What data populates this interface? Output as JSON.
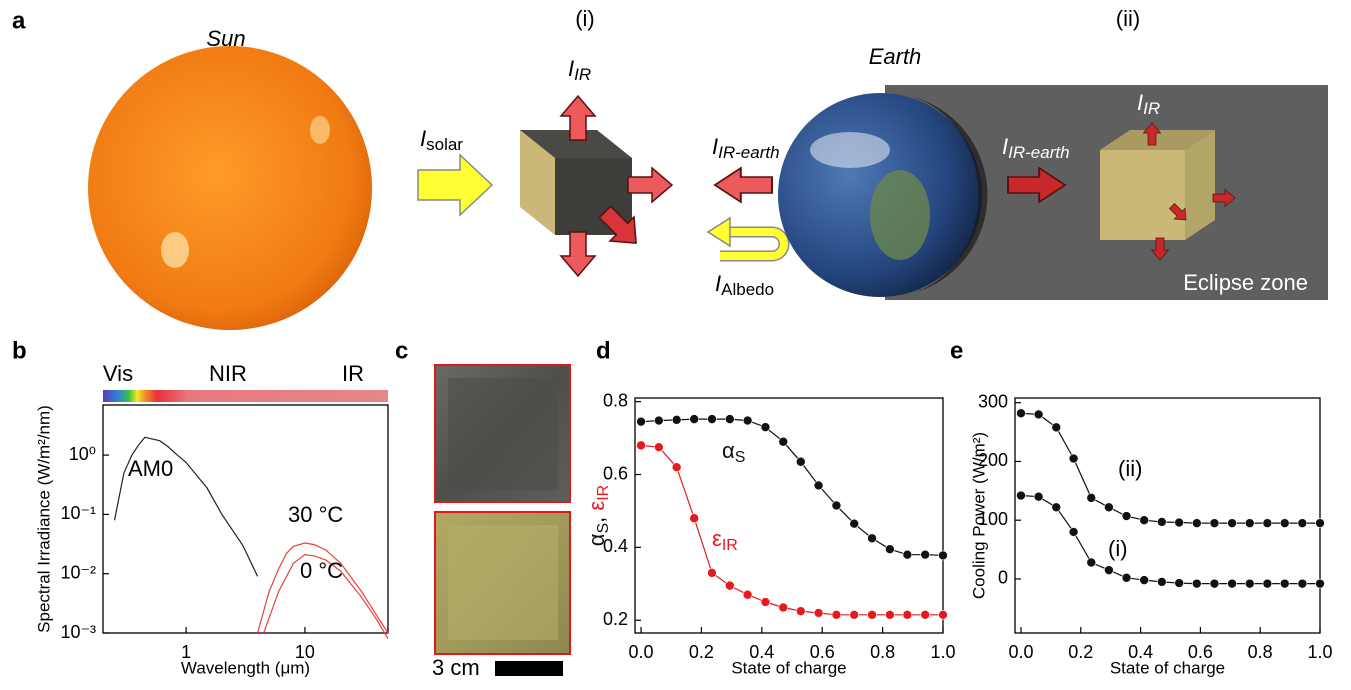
{
  "panel_a": {
    "label": "a",
    "sun_label": "Sun",
    "case_i": "(i)",
    "case_ii": "(ii)",
    "earth_label": "Earth",
    "eclipse_label": "Eclipse zone",
    "i_ir": {
      "main": "I",
      "sub": "IR"
    },
    "i_solar": {
      "main": "I",
      "sub": "solar"
    },
    "i_ir_earth_left": {
      "main": "I",
      "sub": "IR-earth"
    },
    "i_albedo": {
      "main": "I",
      "sub": "Albedo"
    },
    "i_ir_earth_right": {
      "main": "I",
      "sub": "IR-earth"
    },
    "i_ir_eclipse": {
      "main": "I",
      "sub": "IR"
    }
  },
  "panel_c": {
    "label": "c",
    "scale_label": "3 cm"
  },
  "chart_data": [
    {
      "type": "line",
      "panel_label": "b",
      "log_x": true,
      "log_y": true,
      "spectrum_bands": [
        "Vis",
        "NIR",
        "IR"
      ],
      "xlabel": "Wavelength (μm)",
      "ylabel": "Spectral Irradiance (W/m²/nm)",
      "xlim": [
        0.2,
        50
      ],
      "xticks": [
        1,
        10
      ],
      "ylim": [
        0.001,
        7
      ],
      "yticks": [
        {
          "value": 0.001,
          "label": "10⁻³"
        },
        {
          "value": 0.01,
          "label": "10⁻²"
        },
        {
          "value": 0.1,
          "label": "10⁻¹"
        },
        {
          "value": 1,
          "label": "10⁰"
        }
      ],
      "series": [
        {
          "name": "AM0",
          "color": "#222222",
          "x": [
            0.25,
            0.3,
            0.35,
            0.4,
            0.45,
            0.5,
            0.6,
            0.7,
            0.8,
            1.0,
            1.5,
            2,
            3,
            4
          ],
          "values": [
            0.08,
            0.5,
            1.0,
            1.5,
            2.0,
            1.9,
            1.75,
            1.4,
            1.1,
            0.75,
            0.28,
            0.1,
            0.03,
            0.009
          ]
        },
        {
          "name": "30 °C",
          "color": "#e8403a",
          "x": [
            4,
            5,
            6,
            7,
            8,
            10,
            12,
            15,
            20,
            30,
            40,
            50
          ],
          "values": [
            0.001,
            0.005,
            0.012,
            0.022,
            0.029,
            0.033,
            0.031,
            0.025,
            0.015,
            0.005,
            0.002,
            0.001
          ]
        },
        {
          "name": "0 °C",
          "color": "#e8403a",
          "x": [
            4.5,
            5,
            6,
            8,
            10,
            12,
            15,
            20,
            30,
            40,
            50
          ],
          "values": [
            0.001,
            0.0018,
            0.005,
            0.015,
            0.021,
            0.02,
            0.017,
            0.011,
            0.004,
            0.0017,
            0.0008
          ]
        }
      ]
    },
    {
      "type": "line",
      "panel_label": "d",
      "markers": true,
      "xlabel": "State of charge",
      "ylabel_separator": ", ",
      "xlim": [
        -0.02,
        1.0
      ],
      "xticks": [
        {
          "value": 0,
          "label": "0.0"
        },
        0.2,
        0.4,
        0.6,
        0.8,
        {
          "value": 1,
          "label": "1.0"
        }
      ],
      "ylim": [
        0.165,
        0.81
      ],
      "yticks": [
        0.2,
        0.4,
        0.6,
        0.8
      ],
      "x": [
        0,
        0.059,
        0.118,
        0.176,
        0.235,
        0.294,
        0.353,
        0.412,
        0.471,
        0.529,
        0.588,
        0.647,
        0.706,
        0.765,
        0.824,
        0.882,
        0.941,
        1.0
      ],
      "series": [
        {
          "symbol": "α",
          "subscript": "S",
          "color": "#111111",
          "values": [
            0.745,
            0.748,
            0.75,
            0.752,
            0.752,
            0.752,
            0.748,
            0.73,
            0.69,
            0.635,
            0.57,
            0.515,
            0.465,
            0.425,
            0.395,
            0.38,
            0.38,
            0.378
          ]
        },
        {
          "symbol": "ε",
          "subscript": "IR",
          "color": "#e8191e",
          "values": [
            0.68,
            0.675,
            0.62,
            0.48,
            0.33,
            0.295,
            0.27,
            0.25,
            0.235,
            0.225,
            0.22,
            0.215,
            0.215,
            0.215,
            0.215,
            0.215,
            0.215,
            0.215
          ]
        }
      ]
    },
    {
      "type": "line",
      "panel_label": "e",
      "markers": true,
      "xlabel": "State of charge",
      "ylabel": "Cooling Power (W/m²)",
      "xlim": [
        -0.02,
        1.0
      ],
      "xticks": [
        {
          "value": 0,
          "label": "0.0"
        },
        0.2,
        0.4,
        0.6,
        0.8,
        {
          "value": 1,
          "label": "1.0"
        }
      ],
      "ylim": [
        -92,
        308
      ],
      "yticks": [
        0,
        100,
        200,
        300
      ],
      "x": [
        0,
        0.059,
        0.118,
        0.176,
        0.235,
        0.294,
        0.353,
        0.412,
        0.471,
        0.529,
        0.588,
        0.647,
        0.706,
        0.765,
        0.824,
        0.882,
        0.941,
        1.0
      ],
      "series": [
        {
          "name": "(ii)",
          "color": "#111111",
          "values": [
            282,
            280,
            258,
            205,
            138,
            122,
            107,
            100,
            97,
            96,
            95,
            95,
            95,
            95,
            95,
            95,
            95,
            95
          ]
        },
        {
          "name": "(i)",
          "color": "#111111",
          "values": [
            142,
            140,
            122,
            80,
            28,
            15,
            2,
            -2,
            -5,
            -7,
            -8,
            -8,
            -8,
            -8,
            -8,
            -8,
            -8,
            -8
          ]
        }
      ]
    }
  ]
}
